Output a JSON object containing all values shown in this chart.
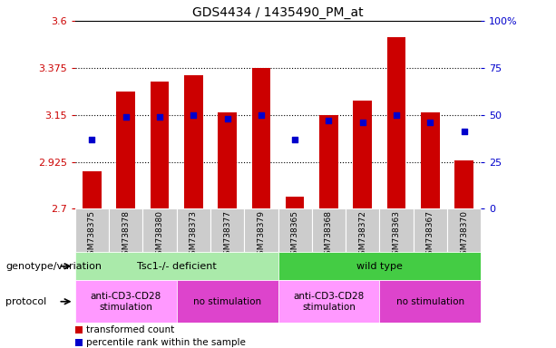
{
  "title": "GDS4434 / 1435490_PM_at",
  "samples": [
    "GSM738375",
    "GSM738378",
    "GSM738380",
    "GSM738373",
    "GSM738377",
    "GSM738379",
    "GSM738365",
    "GSM738368",
    "GSM738372",
    "GSM738363",
    "GSM738367",
    "GSM738370"
  ],
  "red_values": [
    2.88,
    3.26,
    3.31,
    3.34,
    3.16,
    3.375,
    2.76,
    3.15,
    3.22,
    3.52,
    3.16,
    2.93
  ],
  "blue_values": [
    37,
    49,
    49,
    50,
    48,
    50,
    37,
    47,
    46,
    50,
    46,
    41
  ],
  "ylim_left": [
    2.7,
    3.6
  ],
  "ylim_right": [
    0,
    100
  ],
  "yticks_left": [
    2.7,
    2.925,
    3.15,
    3.375,
    3.6
  ],
  "ytick_labels_left": [
    "2.7",
    "2.925",
    "3.15",
    "3.375",
    "3.6"
  ],
  "yticks_right": [
    0,
    25,
    50,
    75,
    100
  ],
  "ytick_labels_right": [
    "0",
    "25",
    "50",
    "75",
    "100%"
  ],
  "gridlines": [
    2.925,
    3.15,
    3.375
  ],
  "bar_color": "#cc0000",
  "dot_color": "#0000cc",
  "genotype_groups": [
    {
      "label": "Tsc1-/- deficient",
      "start": 0,
      "end": 6,
      "color": "#aaeaaa"
    },
    {
      "label": "wild type",
      "start": 6,
      "end": 12,
      "color": "#44cc44"
    }
  ],
  "protocol_groups": [
    {
      "label": "anti-CD3-CD28\nstimulation",
      "start": 0,
      "end": 3,
      "color": "#ff99ff"
    },
    {
      "label": "no stimulation",
      "start": 3,
      "end": 6,
      "color": "#dd44cc"
    },
    {
      "label": "anti-CD3-CD28\nstimulation",
      "start": 6,
      "end": 9,
      "color": "#ff99ff"
    },
    {
      "label": "no stimulation",
      "start": 9,
      "end": 12,
      "color": "#dd44cc"
    }
  ],
  "legend_items": [
    {
      "label": "transformed count",
      "color": "#cc0000"
    },
    {
      "label": "percentile rank within the sample",
      "color": "#0000cc"
    }
  ],
  "label_genotype": "genotype/variation",
  "label_protocol": "protocol"
}
